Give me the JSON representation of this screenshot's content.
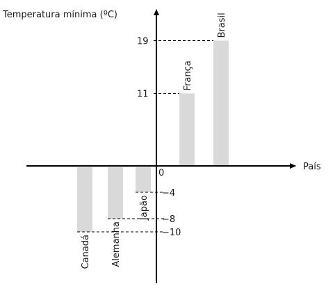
{
  "chart_data": {
    "type": "bar",
    "ylabel": "Temperatura mínima (ºC)",
    "xlabel": "País",
    "origin_label": "0",
    "categories": [
      "Canadá",
      "Alemanha",
      "Japão",
      "França",
      "Brasil"
    ],
    "values": [
      -10,
      -8,
      -4,
      11,
      19
    ],
    "yticks": [
      19,
      11,
      -4,
      -8,
      -10
    ],
    "colors": {
      "bar": "#d9d9d9",
      "axis": "#000000",
      "guide": "#000000"
    }
  }
}
